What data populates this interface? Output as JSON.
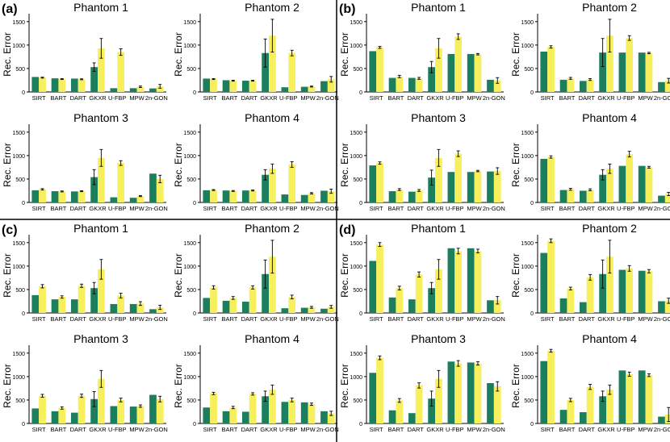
{
  "colors": {
    "series_a": "#1b7f5d",
    "series_b": "#f7ef5c",
    "axis": "#000000",
    "divider": "#000000"
  },
  "chart_data": {
    "type": "bar",
    "ylabel": "Rec. Error",
    "categories": [
      "SIRT",
      "BART",
      "DART",
      "GKXR",
      "U-FBP",
      "MPW",
      "2n-GON"
    ],
    "ylim": [
      0,
      1600
    ],
    "yticks": [
      0,
      500,
      1000,
      1500
    ],
    "panels": [
      {
        "label": "(a)",
        "charts": [
          {
            "title": "Phantom 1",
            "a": [
              320,
              290,
              285,
              530,
              80,
              80,
              75
            ],
            "a_err": [
              0,
              0,
              0,
              90,
              0,
              0,
              0
            ],
            "b": [
              305,
              275,
              270,
              930,
              850,
              110,
              120
            ],
            "b_err": [
              10,
              10,
              10,
              210,
              70,
              15,
              40
            ]
          },
          {
            "title": "Phantom 2",
            "a": [
              285,
              250,
              240,
              830,
              100,
              110,
              230
            ],
            "a_err": [
              0,
              0,
              0,
              300,
              0,
              0,
              0
            ],
            "b": [
              275,
              240,
              240,
              1200,
              830,
              115,
              270
            ],
            "b_err": [
              10,
              10,
              10,
              350,
              60,
              10,
              60
            ]
          },
          {
            "title": "Phantom 3",
            "a": [
              260,
              240,
              235,
              540,
              110,
              100,
              615
            ],
            "a_err": [
              0,
              0,
              0,
              160,
              0,
              0,
              0
            ],
            "b": [
              280,
              235,
              240,
              950,
              840,
              135,
              500
            ],
            "b_err": [
              15,
              10,
              10,
              180,
              50,
              10,
              80
            ]
          },
          {
            "title": "Phantom 4",
            "a": [
              260,
              255,
              255,
              590,
              170,
              160,
              250
            ],
            "a_err": [
              0,
              0,
              0,
              110,
              0,
              0,
              0
            ],
            "b": [
              265,
              245,
              255,
              720,
              810,
              195,
              240
            ],
            "b_err": [
              10,
              10,
              10,
              100,
              60,
              15,
              45
            ]
          }
        ]
      },
      {
        "label": "(b)",
        "charts": [
          {
            "title": "Phantom 1",
            "a": [
              870,
              300,
              300,
              530,
              810,
              810,
              260
            ],
            "a_err": [
              0,
              0,
              0,
              120,
              0,
              0,
              0
            ],
            "b": [
              950,
              330,
              290,
              930,
              1180,
              805,
              245
            ],
            "b_err": [
              20,
              25,
              20,
              210,
              60,
              15,
              60
            ]
          },
          {
            "title": "Phantom 2",
            "a": [
              860,
              260,
              235,
              840,
              840,
              840,
              210
            ],
            "a_err": [
              0,
              0,
              0,
              300,
              0,
              0,
              0
            ],
            "b": [
              960,
              290,
              265,
              1200,
              1150,
              830,
              240
            ],
            "b_err": [
              25,
              20,
              20,
              350,
              50,
              15,
              50
            ]
          },
          {
            "title": "Phantom 3",
            "a": [
              790,
              240,
              230,
              530,
              650,
              650,
              660
            ],
            "a_err": [
              0,
              0,
              0,
              160,
              0,
              0,
              0
            ],
            "b": [
              840,
              275,
              255,
              950,
              1040,
              670,
              670
            ],
            "b_err": [
              25,
              20,
              20,
              180,
              60,
              15,
              70
            ]
          },
          {
            "title": "Phantom 4",
            "a": [
              930,
              265,
              250,
              590,
              780,
              780,
              145
            ],
            "a_err": [
              0,
              0,
              0,
              110,
              0,
              0,
              0
            ],
            "b": [
              970,
              280,
              270,
              720,
              1030,
              750,
              180
            ],
            "b_err": [
              25,
              20,
              20,
              100,
              60,
              20,
              35
            ]
          }
        ]
      },
      {
        "label": "(c)",
        "charts": [
          {
            "title": "Phantom 1",
            "a": [
              380,
              290,
              290,
              530,
              190,
              190,
              80
            ],
            "a_err": [
              0,
              0,
              0,
              120,
              0,
              0,
              0
            ],
            "b": [
              570,
              340,
              580,
              930,
              370,
              200,
              120
            ],
            "b_err": [
              35,
              25,
              35,
              210,
              50,
              40,
              45
            ]
          },
          {
            "title": "Phantom 2",
            "a": [
              320,
              260,
              240,
              830,
              100,
              110,
              90
            ],
            "a_err": [
              0,
              0,
              0,
              300,
              0,
              0,
              0
            ],
            "b": [
              545,
              320,
              545,
              1200,
              340,
              120,
              130
            ],
            "b_err": [
              35,
              30,
              35,
              350,
              40,
              20,
              30
            ]
          },
          {
            "title": "Phantom 3",
            "a": [
              320,
              260,
              230,
              520,
              370,
              360,
              610
            ],
            "a_err": [
              0,
              0,
              0,
              160,
              0,
              0,
              0
            ],
            "b": [
              590,
              330,
              590,
              950,
              500,
              370,
              520
            ],
            "b_err": [
              30,
              25,
              35,
              180,
              40,
              25,
              60
            ]
          },
          {
            "title": "Phantom 4",
            "a": [
              340,
              260,
              250,
              580,
              460,
              450,
              260
            ],
            "a_err": [
              0,
              0,
              0,
              110,
              0,
              0,
              0
            ],
            "b": [
              640,
              340,
              630,
              720,
              500,
              410,
              215
            ],
            "b_err": [
              25,
              25,
              25,
              100,
              40,
              25,
              45
            ]
          }
        ]
      },
      {
        "label": "(d)",
        "charts": [
          {
            "title": "Phantom 1",
            "a": [
              1110,
              330,
              290,
              530,
              1380,
              1380,
              270
            ],
            "a_err": [
              0,
              0,
              0,
              120,
              0,
              0,
              0
            ],
            "b": [
              1460,
              530,
              820,
              930,
              1320,
              1320,
              270
            ],
            "b_err": [
              40,
              40,
              55,
              210,
              60,
              40,
              80
            ]
          },
          {
            "title": "Phantom 2",
            "a": [
              1280,
              310,
              230,
              830,
              920,
              900,
              250
            ],
            "a_err": [
              0,
              0,
              0,
              300,
              0,
              0,
              0
            ],
            "b": [
              1540,
              520,
              760,
              1200,
              950,
              890,
              260
            ],
            "b_err": [
              40,
              30,
              60,
              350,
              60,
              35,
              55
            ]
          },
          {
            "title": "Phantom 3",
            "a": [
              1080,
              280,
              220,
              530,
              1320,
              1300,
              860
            ],
            "a_err": [
              0,
              0,
              0,
              160,
              0,
              0,
              0
            ],
            "b": [
              1400,
              490,
              810,
              950,
              1280,
              1280,
              790
            ],
            "b_err": [
              40,
              40,
              55,
              180,
              60,
              35,
              100
            ]
          },
          {
            "title": "Phantom 4",
            "a": [
              1330,
              290,
              240,
              580,
              1130,
              1130,
              145
            ],
            "a_err": [
              0,
              0,
              0,
              110,
              0,
              0,
              0
            ],
            "b": [
              1550,
              500,
              780,
              720,
              1050,
              1030,
              190
            ],
            "b_err": [
              30,
              35,
              55,
              100,
              45,
              30,
              150
            ]
          }
        ]
      }
    ]
  }
}
